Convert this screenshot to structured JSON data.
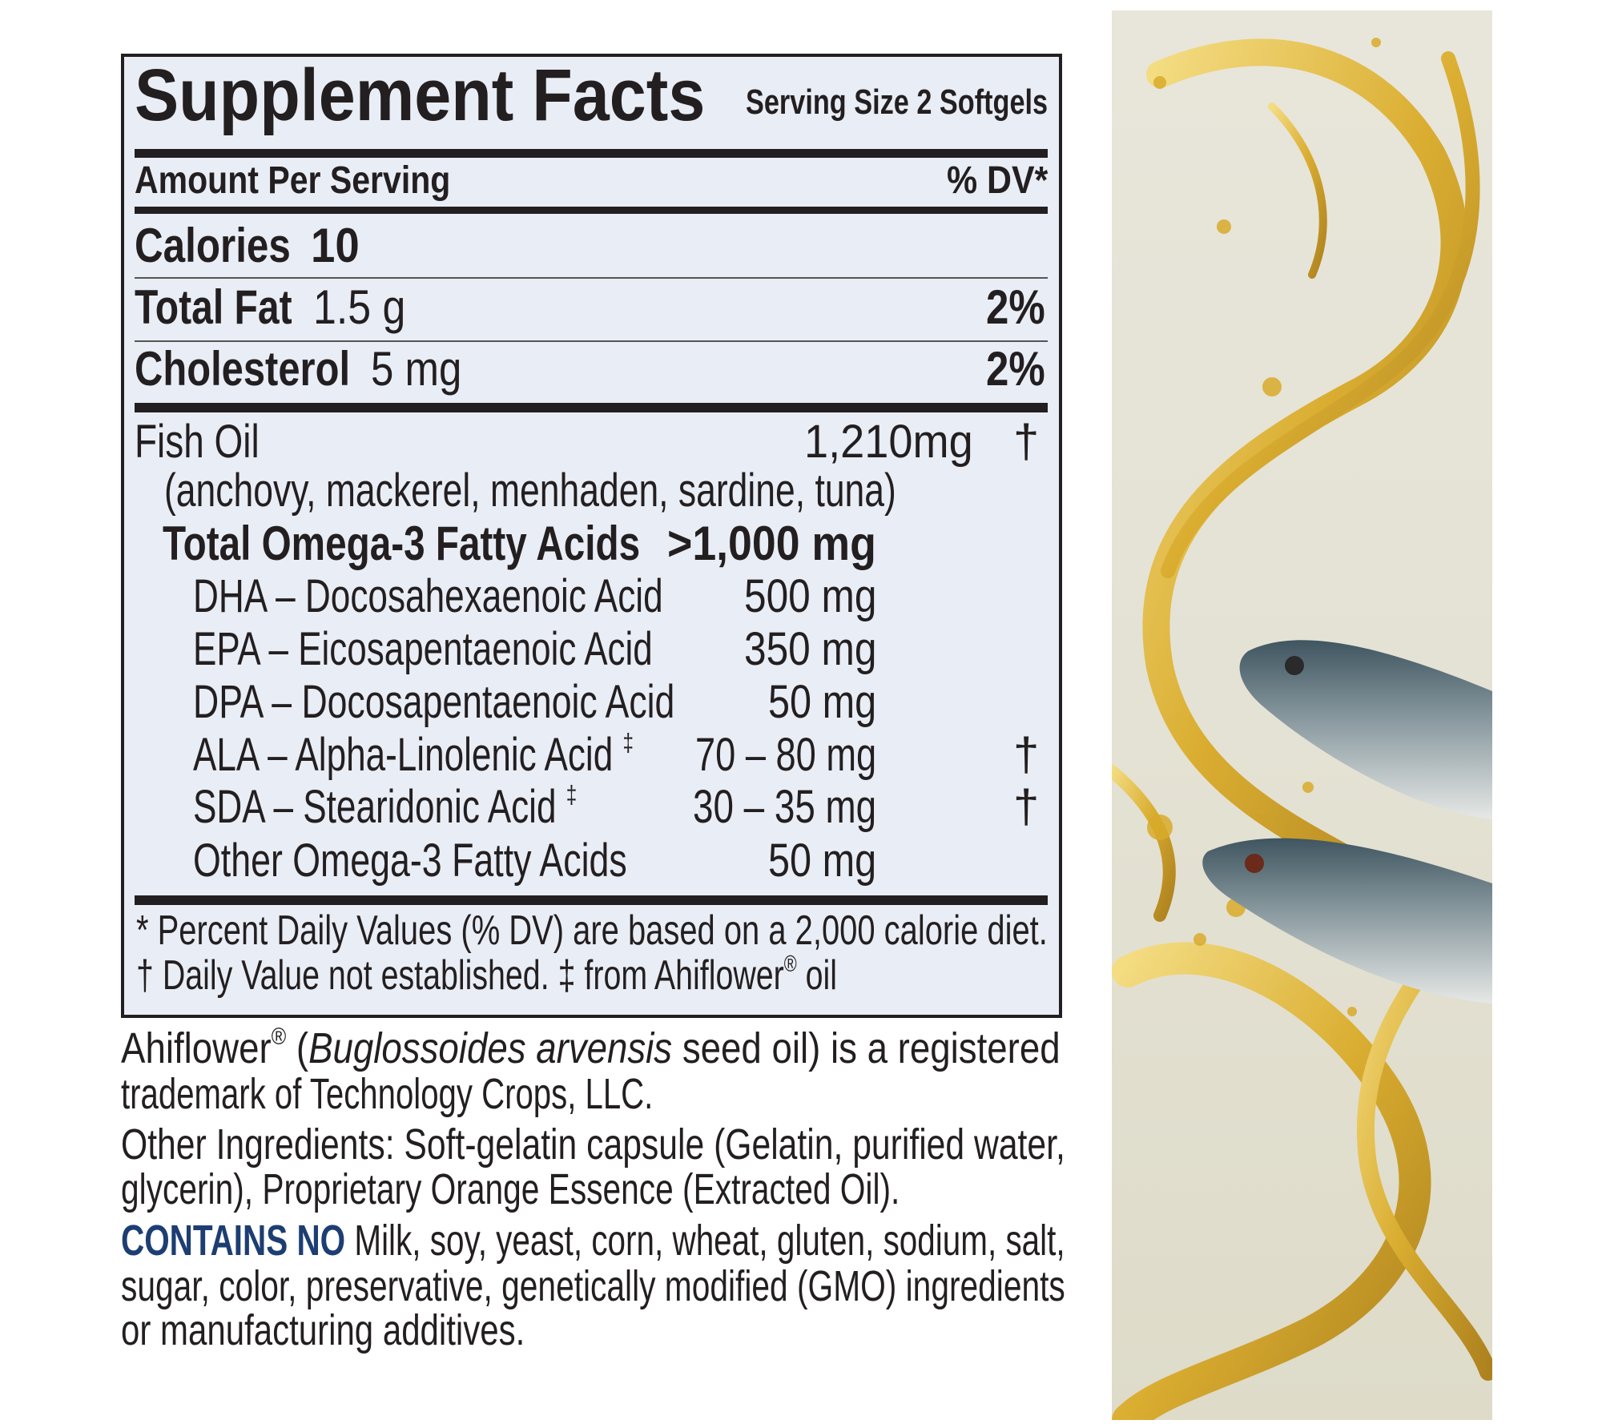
{
  "label": {
    "title": "Supplement Facts",
    "serving_size": "Serving Size 2 Softgels",
    "amount_per_serving": "Amount Per Serving",
    "dv_header": "% DV*",
    "calories": {
      "label": "Calories",
      "value": "10"
    },
    "total_fat": {
      "label": "Total Fat",
      "amount": "1.5 g",
      "dv": "2%"
    },
    "cholesterol": {
      "label": "Cholesterol",
      "amount": "5 mg",
      "dv": "2%"
    },
    "fish_oil": {
      "label": "Fish Oil",
      "amount": "1,210mg",
      "dv_mark": "†",
      "sources": "(anchovy, mackerel, menhaden, sardine, tuna)"
    },
    "omega3": {
      "label": "Total Omega-3 Fatty Acids",
      "amount": ">1,000 mg"
    },
    "sub_items": [
      {
        "label": "DHA – Docosahexaenoic Acid",
        "sup": "",
        "amount": "500 mg",
        "dv_mark": ""
      },
      {
        "label": "EPA – Eicosapentaenoic Acid",
        "sup": "",
        "amount": "350 mg",
        "dv_mark": ""
      },
      {
        "label": "DPA – Docosapentaenoic Acid",
        "sup": "",
        "amount": "50 mg",
        "dv_mark": ""
      },
      {
        "label": "ALA – Alpha-Linolenic Acid ",
        "sup": "‡",
        "amount": "70 – 80 mg",
        "dv_mark": "†"
      },
      {
        "label": "SDA – Stearidonic Acid ",
        "sup": "‡",
        "amount": "30 – 35 mg",
        "dv_mark": "†"
      },
      {
        "label": "Other Omega-3 Fatty Acids",
        "sup": "",
        "amount": "50 mg",
        "dv_mark": ""
      }
    ],
    "footnote_1": "* Percent Daily Values (% DV) are based on a 2,000 calorie diet.",
    "footnote_2_a": "† Daily Value not established. ‡ from Ahiflower",
    "footnote_2_reg": "®",
    "footnote_2_b": " oil"
  },
  "notes": {
    "ahiflower_brand": "Ahiflower",
    "ahiflower_reg": "®",
    "ahiflower_open": " (",
    "ahiflower_species": "Buglossoides arvensis",
    "ahiflower_line1_rest": " seed oil) is a registered",
    "ahiflower_line2": "trademark of Technology Crops, LLC.",
    "other_ingredients_line1": "Other Ingredients: Soft-gelatin capsule (Gelatin, purified water,",
    "other_ingredients_line2": "glycerin), Proprietary Orange Essence (Extracted Oil).",
    "contains_no_label": "CONTAINS NO",
    "contains_no_line1": " Milk, soy, yeast, corn, wheat, gluten, sodium, salt,",
    "contains_no_line2": "sugar, color, preservative, genetically modified (GMO) ingredients",
    "contains_no_line3": "or manufacturing additives."
  },
  "colors": {
    "panel_bg": "#e9edf5",
    "text": "#231f20",
    "accent_blue": "#1d3e72",
    "oil_gold": "#d4a520"
  },
  "image": {
    "subject": "golden fish oil splash with two mackerel"
  }
}
